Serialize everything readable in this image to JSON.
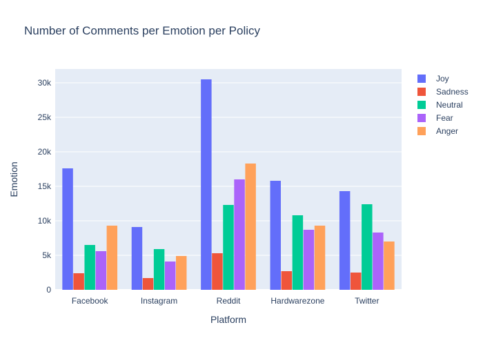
{
  "chart_data": {
    "type": "bar",
    "title": "Number of Comments per Emotion per Policy",
    "xlabel": "Platform",
    "ylabel": "Emotion",
    "categories": [
      "Facebook",
      "Instagram",
      "Reddit",
      "Hardwarezone",
      "Twitter"
    ],
    "series": [
      {
        "name": "Joy",
        "color": "#636efa",
        "values": [
          17600,
          9100,
          30500,
          15800,
          14300
        ]
      },
      {
        "name": "Sadness",
        "color": "#ef553b",
        "values": [
          2400,
          1700,
          5300,
          2700,
          2500
        ]
      },
      {
        "name": "Neutral",
        "color": "#00cc96",
        "values": [
          6500,
          5900,
          12300,
          10800,
          12400
        ]
      },
      {
        "name": "Fear",
        "color": "#ab63fa",
        "values": [
          5600,
          4100,
          16000,
          8700,
          8300
        ]
      },
      {
        "name": "Anger",
        "color": "#ffa15a",
        "values": [
          9300,
          4900,
          18300,
          9300,
          7000
        ]
      }
    ],
    "ylim": [
      0,
      32000
    ],
    "yticks": [
      0,
      5000,
      10000,
      15000,
      20000,
      25000,
      30000
    ],
    "ytick_labels": [
      "0",
      "5k",
      "10k",
      "15k",
      "20k",
      "25k",
      "30k"
    ],
    "grid": true,
    "legend_position": "top-right",
    "plot_background": "#e5ecf6"
  }
}
